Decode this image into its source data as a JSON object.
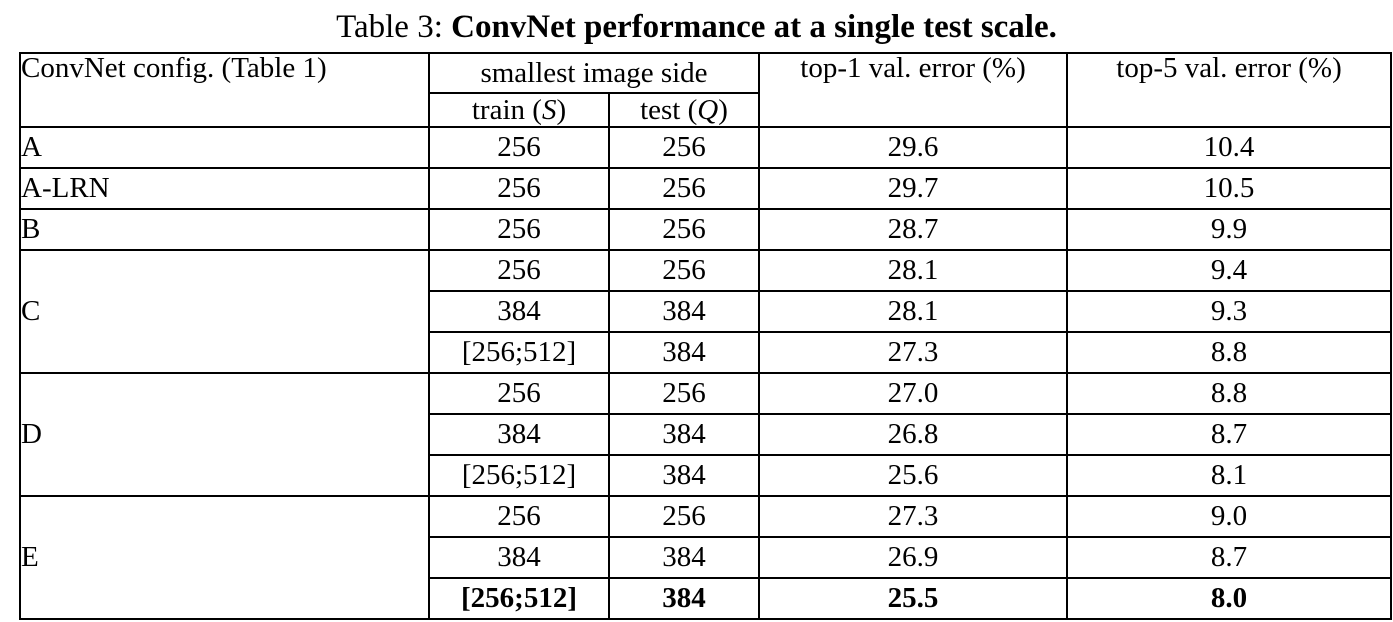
{
  "caption": {
    "prefix": "Table 3: ",
    "bold_text": "ConvNet performance at a single test scale."
  },
  "table": {
    "headers": {
      "config": "ConvNet config. (Table 1)",
      "smallest_image_side": "smallest image side",
      "train_prefix": "train (",
      "train_symbol": "S",
      "train_suffix": ")",
      "test_prefix": "test (",
      "test_symbol": "Q",
      "test_suffix": ")",
      "top1": "top-1 val. error (%)",
      "top5": "top-5 val. error (%)"
    },
    "groups": [
      {
        "config": "A",
        "rows": [
          {
            "train": "256",
            "test": "256",
            "top1": "29.6",
            "top5": "10.4",
            "bold": false
          }
        ]
      },
      {
        "config": "A-LRN",
        "rows": [
          {
            "train": "256",
            "test": "256",
            "top1": "29.7",
            "top5": "10.5",
            "bold": false
          }
        ]
      },
      {
        "config": "B",
        "rows": [
          {
            "train": "256",
            "test": "256",
            "top1": "28.7",
            "top5": "9.9",
            "bold": false
          }
        ]
      },
      {
        "config": "C",
        "rows": [
          {
            "train": "256",
            "test": "256",
            "top1": "28.1",
            "top5": "9.4",
            "bold": false
          },
          {
            "train": "384",
            "test": "384",
            "top1": "28.1",
            "top5": "9.3",
            "bold": false
          },
          {
            "train": "[256;512]",
            "test": "384",
            "top1": "27.3",
            "top5": "8.8",
            "bold": false
          }
        ]
      },
      {
        "config": "D",
        "rows": [
          {
            "train": "256",
            "test": "256",
            "top1": "27.0",
            "top5": "8.8",
            "bold": false
          },
          {
            "train": "384",
            "test": "384",
            "top1": "26.8",
            "top5": "8.7",
            "bold": false
          },
          {
            "train": "[256;512]",
            "test": "384",
            "top1": "25.6",
            "top5": "8.1",
            "bold": false
          }
        ]
      },
      {
        "config": "E",
        "rows": [
          {
            "train": "256",
            "test": "256",
            "top1": "27.3",
            "top5": "9.0",
            "bold": false
          },
          {
            "train": "384",
            "test": "384",
            "top1": "26.9",
            "top5": "8.7",
            "bold": false
          },
          {
            "train": "[256;512]",
            "test": "384",
            "top1": "25.5",
            "top5": "8.0",
            "bold": true
          }
        ]
      }
    ]
  },
  "colors": {
    "text": "#000000",
    "border": "#000000",
    "background": "#ffffff"
  }
}
